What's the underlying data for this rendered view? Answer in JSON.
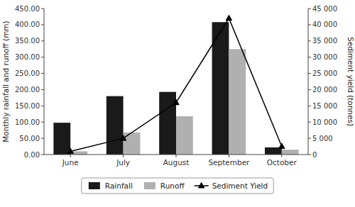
{
  "chart_data": {
    "type": "bar",
    "categories": [
      "June",
      "July",
      "August",
      "September",
      "October"
    ],
    "series": [
      {
        "name": "Rainfall",
        "color": "#1a1a1a",
        "values": [
          98,
          180,
          193,
          408,
          22
        ]
      },
      {
        "name": "Runoff",
        "color": "#b0b0b0",
        "values": [
          10,
          68,
          118,
          325,
          15
        ]
      },
      {
        "name": "Sediment Yield",
        "type": "line",
        "axis": "y2",
        "color": "#000000",
        "marker": "triangle",
        "values": [
          1000,
          5000,
          16000,
          42000,
          2500
        ]
      }
    ],
    "ylabel": "Monthly rainfall and runoff (mm)",
    "y2label": "Sediment yield (tonnes)",
    "ylim": [
      0,
      450
    ],
    "yticks": [
      {
        "value": 0,
        "label": "0.00"
      },
      {
        "value": 50,
        "label": "50.00"
      },
      {
        "value": 100,
        "label": "100.00"
      },
      {
        "value": 150,
        "label": "150.00"
      },
      {
        "value": 200,
        "label": "200.00"
      },
      {
        "value": 250,
        "label": "250.00"
      },
      {
        "value": 300,
        "label": "300.00"
      },
      {
        "value": 350,
        "label": "350.00"
      },
      {
        "value": 400,
        "label": "400.00"
      },
      {
        "value": 450,
        "label": "450.00"
      }
    ],
    "y2lim": [
      0,
      45000
    ],
    "y2ticks": [
      0,
      {
        "value": 5000,
        "label": "5 000"
      },
      {
        "value": 10000,
        "label": "10 000"
      },
      {
        "value": 15000,
        "label": "15 000"
      },
      {
        "value": 20000,
        "label": "20 000"
      },
      {
        "value": 25000,
        "label": "25 000"
      },
      {
        "value": 30000,
        "label": "30 000"
      },
      {
        "value": 35000,
        "label": "35 000"
      },
      {
        "value": 40000,
        "label": "40 000"
      },
      {
        "value": 45000,
        "label": "45 000"
      }
    ],
    "grid": false,
    "legend": "bottom"
  }
}
